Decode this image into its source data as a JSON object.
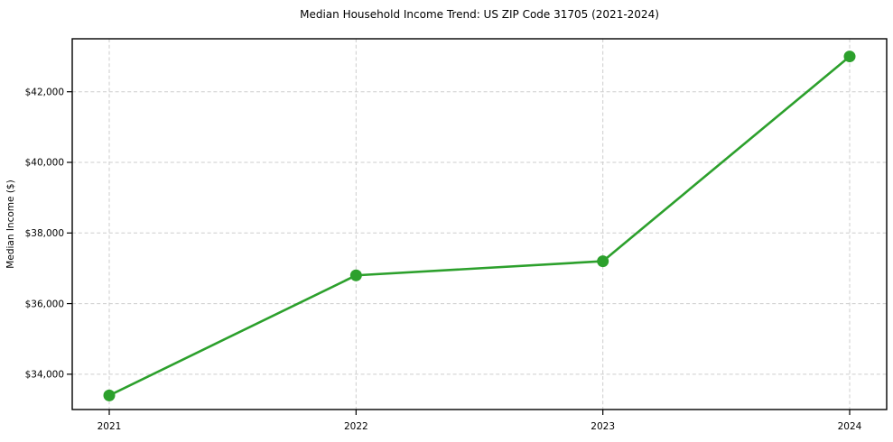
{
  "page": {
    "background": "#ffffff"
  },
  "chart_data": {
    "type": "line",
    "title": "Median Household Income Trend: US ZIP Code 31705 (2021-2024)",
    "xlabel": "",
    "ylabel": "Median Income ($)",
    "categories": [
      "2021",
      "2022",
      "2023",
      "2024"
    ],
    "values": [
      33400,
      36800,
      37200,
      43000
    ],
    "ylim": [
      33000,
      43500
    ],
    "yticks": [
      {
        "value": 34000,
        "label": "$34,000"
      },
      {
        "value": 36000,
        "label": "$36,000"
      },
      {
        "value": 38000,
        "label": "$38,000"
      },
      {
        "value": 40000,
        "label": "$40,000"
      },
      {
        "value": 42000,
        "label": "$42,000"
      }
    ],
    "grid": true,
    "grid_line_style": "dashed",
    "grid_color": "#cdcdcd",
    "axis_color": "#000000",
    "line_color": "#2ca02c",
    "marker": "circle",
    "legend_position": "none"
  }
}
